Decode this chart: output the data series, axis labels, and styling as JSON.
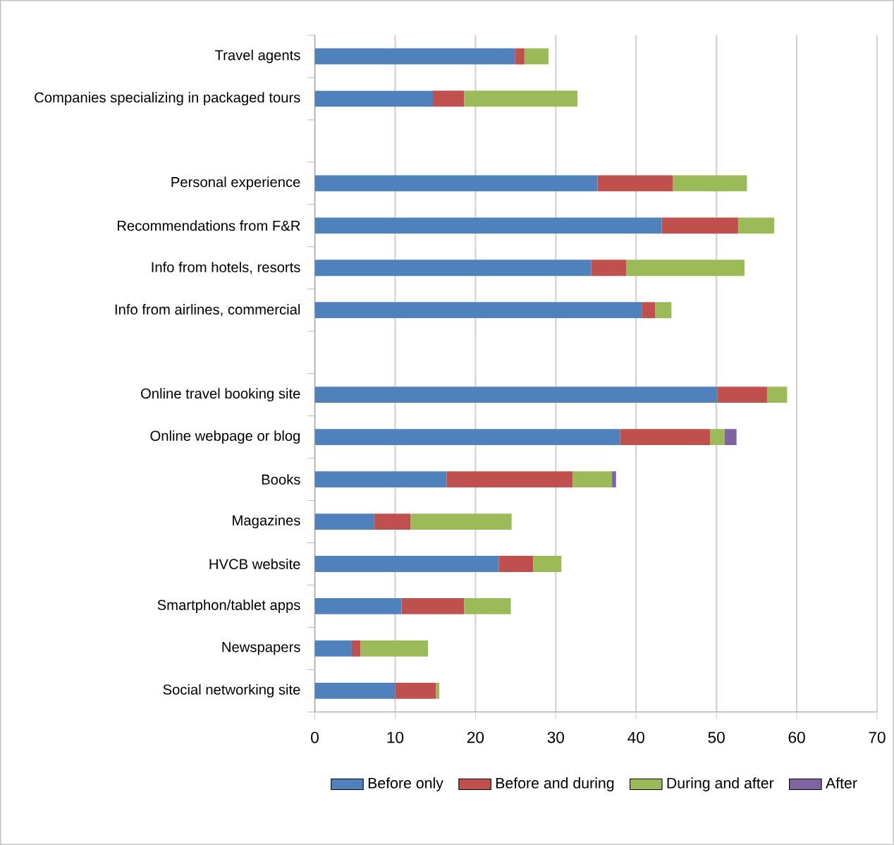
{
  "chart_data": {
    "type": "bar",
    "orientation": "horizontal",
    "stacked": true,
    "categories": [
      "Travel agents",
      "Companies specializing in packaged tours",
      null,
      "Personal experience",
      "Recommendations from F&R",
      "Info from hotels, resorts",
      "Info from airlines, commercial",
      null,
      "Online travel booking site",
      "Online webpage or blog",
      "Books",
      "Magazines",
      "HVCB website",
      "Smartphon/tablet apps",
      "Newspapers",
      "Social networking site"
    ],
    "series": [
      {
        "name": "Before only",
        "color": "#4f81bd",
        "values": [
          24.9,
          14.7,
          null,
          35.2,
          43.2,
          34.4,
          40.7,
          null,
          50.1,
          38.0,
          16.4,
          7.4,
          22.9,
          10.8,
          4.6,
          10.0
        ]
      },
      {
        "name": "Before and during",
        "color": "#c0504d",
        "values": [
          1.2,
          3.9,
          null,
          9.4,
          9.5,
          4.4,
          1.7,
          null,
          6.2,
          11.2,
          15.7,
          4.5,
          4.3,
          7.8,
          1.1,
          5.1
        ]
      },
      {
        "name": "During and after",
        "color": "#9bbb59",
        "values": [
          3.0,
          14.1,
          null,
          9.2,
          4.5,
          14.7,
          2.0,
          null,
          2.5,
          1.8,
          4.9,
          12.6,
          3.5,
          5.8,
          8.4,
          0.4
        ]
      },
      {
        "name": "After",
        "color": "#8064a2",
        "values": [
          null,
          null,
          null,
          null,
          null,
          null,
          null,
          null,
          null,
          1.5,
          0.5,
          null,
          null,
          null,
          null,
          null
        ]
      }
    ],
    "xlim": [
      0,
      70
    ],
    "xticks": [
      0,
      10,
      20,
      30,
      40,
      50,
      60,
      70
    ],
    "grid": "x",
    "legend": "bottom"
  }
}
